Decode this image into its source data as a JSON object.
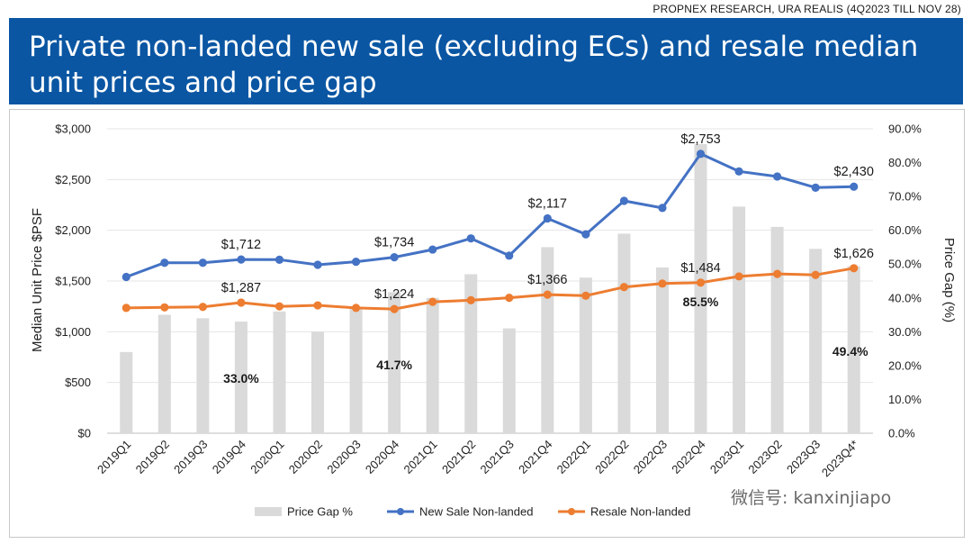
{
  "header": {
    "source": "PROPNEX RESEARCH, URA REALIS (4Q2023 TILL NOV 28)",
    "title_line1": "Private non-landed new sale (excluding ECs) and resale median",
    "title_line2": "unit prices and price gap"
  },
  "watermark": "微信号: kanxinjiapo",
  "colors": {
    "banner": "#0a56a3",
    "bars": "#dadada",
    "new_sale": "#4472c4",
    "resale": "#ed7d31"
  },
  "chart_data": {
    "type": "bar+line",
    "categories": [
      "2019Q1",
      "2019Q2",
      "2019Q3",
      "2019Q4",
      "2020Q1",
      "2020Q2",
      "2020Q3",
      "2020Q4",
      "2021Q1",
      "2021Q2",
      "2021Q3",
      "2021Q4",
      "2022Q1",
      "2022Q2",
      "2022Q3",
      "2022Q4",
      "2023Q1",
      "2023Q2",
      "2023Q3",
      "2023Q4*"
    ],
    "ylabel": "Median Unit Price $PSF",
    "y2label": "Price Gap (%)",
    "ylim": [
      0,
      3000
    ],
    "y2lim": [
      0,
      90
    ],
    "y_ticks": [
      "$0",
      "$500",
      "$1,000",
      "$1,500",
      "$2,000",
      "$2,500",
      "$3,000"
    ],
    "y2_ticks": [
      "0.0%",
      "10.0%",
      "20.0%",
      "30.0%",
      "40.0%",
      "50.0%",
      "60.0%",
      "70.0%",
      "80.0%",
      "90.0%"
    ],
    "grid": true,
    "legend_position": "bottom",
    "series": [
      {
        "name": "Price Gap %",
        "type": "bar",
        "axis": "right",
        "values": [
          24.0,
          35.0,
          34.0,
          33.0,
          36.0,
          30.0,
          37.0,
          41.7,
          40.0,
          47.0,
          31.0,
          55.0,
          46.0,
          59.0,
          49.0,
          85.5,
          67.0,
          61.0,
          54.5,
          49.4
        ]
      },
      {
        "name": "New Sale Non-landed",
        "type": "line",
        "axis": "left",
        "values": [
          1540,
          1680,
          1680,
          1712,
          1710,
          1660,
          1690,
          1734,
          1810,
          1920,
          1750,
          2117,
          1960,
          2290,
          2220,
          2753,
          2580,
          2530,
          2420,
          2430
        ]
      },
      {
        "name": "Resale Non-landed",
        "type": "line",
        "axis": "left",
        "values": [
          1235,
          1240,
          1245,
          1287,
          1250,
          1260,
          1235,
          1224,
          1295,
          1310,
          1335,
          1366,
          1355,
          1440,
          1475,
          1484,
          1545,
          1570,
          1560,
          1626
        ]
      }
    ],
    "data_labels": [
      {
        "series": "New Sale Non-landed",
        "index": 3,
        "text": "$1,712"
      },
      {
        "series": "New Sale Non-landed",
        "index": 7,
        "text": "$1,734"
      },
      {
        "series": "New Sale Non-landed",
        "index": 11,
        "text": "$2,117"
      },
      {
        "series": "New Sale Non-landed",
        "index": 15,
        "text": "$2,753"
      },
      {
        "series": "New Sale Non-landed",
        "index": 19,
        "text": "$2,430"
      },
      {
        "series": "Resale Non-landed",
        "index": 3,
        "text": "$1,287"
      },
      {
        "series": "Resale Non-landed",
        "index": 7,
        "text": "$1,224"
      },
      {
        "series": "Resale Non-landed",
        "index": 11,
        "text": "$1,366"
      },
      {
        "series": "Resale Non-landed",
        "index": 15,
        "text": "$1,484"
      },
      {
        "series": "Resale Non-landed",
        "index": 19,
        "text": "$1,626"
      },
      {
        "series": "Price Gap %",
        "index": 3,
        "text": "33.0%"
      },
      {
        "series": "Price Gap %",
        "index": 7,
        "text": "41.7%"
      },
      {
        "series": "Price Gap %",
        "index": 15,
        "text": "85.5%"
      },
      {
        "series": "Price Gap %",
        "index": 19,
        "text": "49.4%"
      }
    ]
  }
}
